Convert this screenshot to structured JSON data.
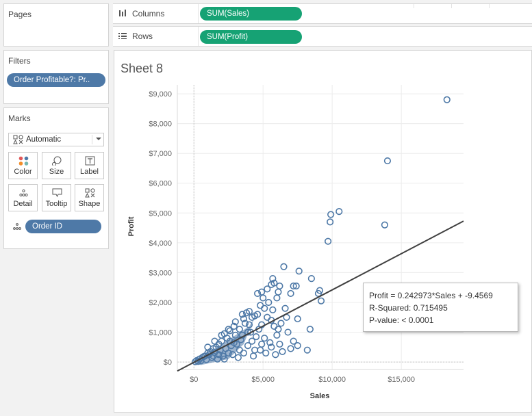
{
  "pages": {
    "title": "Pages"
  },
  "filters": {
    "title": "Filters",
    "pills": [
      {
        "label": "Order Profitable?: Pr.."
      }
    ]
  },
  "marks": {
    "title": "Marks",
    "mark_type": "Automatic",
    "cards": [
      {
        "label": "Color",
        "icon": "color-dots-icon"
      },
      {
        "label": "Size",
        "icon": "size-icon"
      },
      {
        "label": "Label",
        "icon": "label-icon"
      },
      {
        "label": "Detail",
        "icon": "detail-dots-icon"
      },
      {
        "label": "Tooltip",
        "icon": "tooltip-icon"
      },
      {
        "label": "Shape",
        "icon": "shape-icon"
      }
    ],
    "detail_pill": "Order ID"
  },
  "shelves": {
    "columns": {
      "label": "Columns",
      "pill": "SUM(Sales)",
      "icon": "columns-icon"
    },
    "rows": {
      "label": "Rows",
      "pill": "SUM(Profit)",
      "icon": "rows-icon"
    }
  },
  "sheet": {
    "title": "Sheet 8"
  },
  "trend_tooltip": {
    "line1": "Profit = 0.242973*Sales + -9.4569",
    "line2": "R-Squared: 0.715495",
    "line3": "P-value: < 0.0001"
  },
  "colors": {
    "accent_blue": "#4e79a7",
    "accent_green": "#16a274",
    "point_stroke": "#4e79a7",
    "trend_line": "#404040"
  },
  "chart_data": {
    "type": "scatter",
    "title": "",
    "xlabel": "Sales",
    "ylabel": "Profit",
    "xlim": [
      -1200,
      19500
    ],
    "ylim": [
      -250,
      9300
    ],
    "x_ticks": [
      0,
      5000,
      10000,
      15000
    ],
    "x_tick_labels": [
      "$0",
      "$5,000",
      "$10,000",
      "$15,000"
    ],
    "y_ticks": [
      0,
      1000,
      2000,
      3000,
      4000,
      5000,
      6000,
      7000,
      8000,
      9000
    ],
    "y_tick_labels": [
      "$0",
      "$1,000",
      "$2,000",
      "$3,000",
      "$4,000",
      "$5,000",
      "$6,000",
      "$7,000",
      "$8,000",
      "$9,000"
    ],
    "grid": true,
    "marker": "hollow-circle",
    "trend_line": {
      "slope": 0.242973,
      "intercept": -9.4569
    },
    "points": [
      [
        18300,
        8800
      ],
      [
        14000,
        6750
      ],
      [
        13800,
        4600
      ],
      [
        10500,
        5050
      ],
      [
        9900,
        4950
      ],
      [
        9850,
        4700
      ],
      [
        9700,
        4050
      ],
      [
        8500,
        2800
      ],
      [
        9100,
        2400
      ],
      [
        9000,
        2300
      ],
      [
        9200,
        2050
      ],
      [
        8400,
        1100
      ],
      [
        7600,
        3050
      ],
      [
        7400,
        2550
      ],
      [
        7200,
        2550
      ],
      [
        6500,
        3200
      ],
      [
        5700,
        2800
      ],
      [
        6200,
        2550
      ],
      [
        7000,
        2300
      ],
      [
        7500,
        1450
      ],
      [
        6600,
        1800
      ],
      [
        6800,
        1000
      ],
      [
        7200,
        700
      ],
      [
        7000,
        450
      ],
      [
        7500,
        550
      ],
      [
        8200,
        400
      ],
      [
        6400,
        350
      ],
      [
        5900,
        250
      ],
      [
        5800,
        2650
      ],
      [
        5600,
        2600
      ],
      [
        6100,
        2350
      ],
      [
        6000,
        2150
      ],
      [
        4600,
        2300
      ],
      [
        4900,
        2350
      ],
      [
        5300,
        2450
      ],
      [
        5000,
        2150
      ],
      [
        5400,
        2000
      ],
      [
        5600,
        1400
      ],
      [
        5800,
        1200
      ],
      [
        6000,
        900
      ],
      [
        6200,
        600
      ],
      [
        5500,
        650
      ],
      [
        4900,
        1250
      ],
      [
        5100,
        800
      ],
      [
        4800,
        400
      ],
      [
        5200,
        300
      ],
      [
        4400,
        1550
      ],
      [
        4200,
        1500
      ],
      [
        4000,
        1700
      ],
      [
        3800,
        1650
      ],
      [
        3500,
        1600
      ],
      [
        3700,
        1300
      ],
      [
        4500,
        850
      ],
      [
        3900,
        550
      ],
      [
        3300,
        1100
      ],
      [
        3000,
        900
      ],
      [
        2900,
        1200
      ],
      [
        2600,
        1050
      ],
      [
        2400,
        800
      ],
      [
        2200,
        950
      ],
      [
        2000,
        700
      ],
      [
        1800,
        600
      ],
      [
        1600,
        500
      ],
      [
        1400,
        450
      ],
      [
        1200,
        350
      ],
      [
        1000,
        300
      ],
      [
        800,
        200
      ],
      [
        600,
        150
      ],
      [
        400,
        100
      ],
      [
        200,
        50
      ],
      [
        3600,
        300
      ],
      [
        4300,
        200
      ],
      [
        3200,
        150
      ],
      [
        2800,
        250
      ],
      [
        2500,
        300
      ],
      [
        2100,
        200
      ],
      [
        1700,
        100
      ],
      [
        1300,
        150
      ],
      [
        900,
        80
      ],
      [
        500,
        40
      ],
      [
        300,
        20
      ],
      [
        100,
        10
      ],
      [
        3400,
        750
      ],
      [
        2700,
        550
      ],
      [
        2300,
        450
      ],
      [
        1900,
        400
      ],
      [
        1500,
        320
      ],
      [
        1100,
        250
      ],
      [
        700,
        180
      ],
      [
        3100,
        600
      ],
      [
        2600,
        700
      ],
      [
        4100,
        1000
      ],
      [
        4700,
        1100
      ],
      [
        5300,
        1500
      ],
      [
        3500,
        900
      ],
      [
        2900,
        650
      ],
      [
        4400,
        400
      ],
      [
        5700,
        1750
      ],
      [
        6300,
        1300
      ],
      [
        4000,
        1250
      ],
      [
        3600,
        1450
      ],
      [
        4800,
        1900
      ],
      [
        5100,
        1800
      ],
      [
        4600,
        1600
      ],
      [
        6700,
        1500
      ],
      [
        3000,
        1350
      ],
      [
        2500,
        1100
      ],
      [
        2000,
        900
      ],
      [
        1500,
        700
      ],
      [
        1000,
        500
      ],
      [
        3300,
        400
      ],
      [
        2200,
        100
      ],
      [
        1800,
        250
      ],
      [
        1400,
        200
      ],
      [
        4200,
        700
      ],
      [
        4900,
        600
      ],
      [
        5600,
        500
      ],
      [
        6100,
        1100
      ],
      [
        3900,
        1000
      ]
    ]
  }
}
